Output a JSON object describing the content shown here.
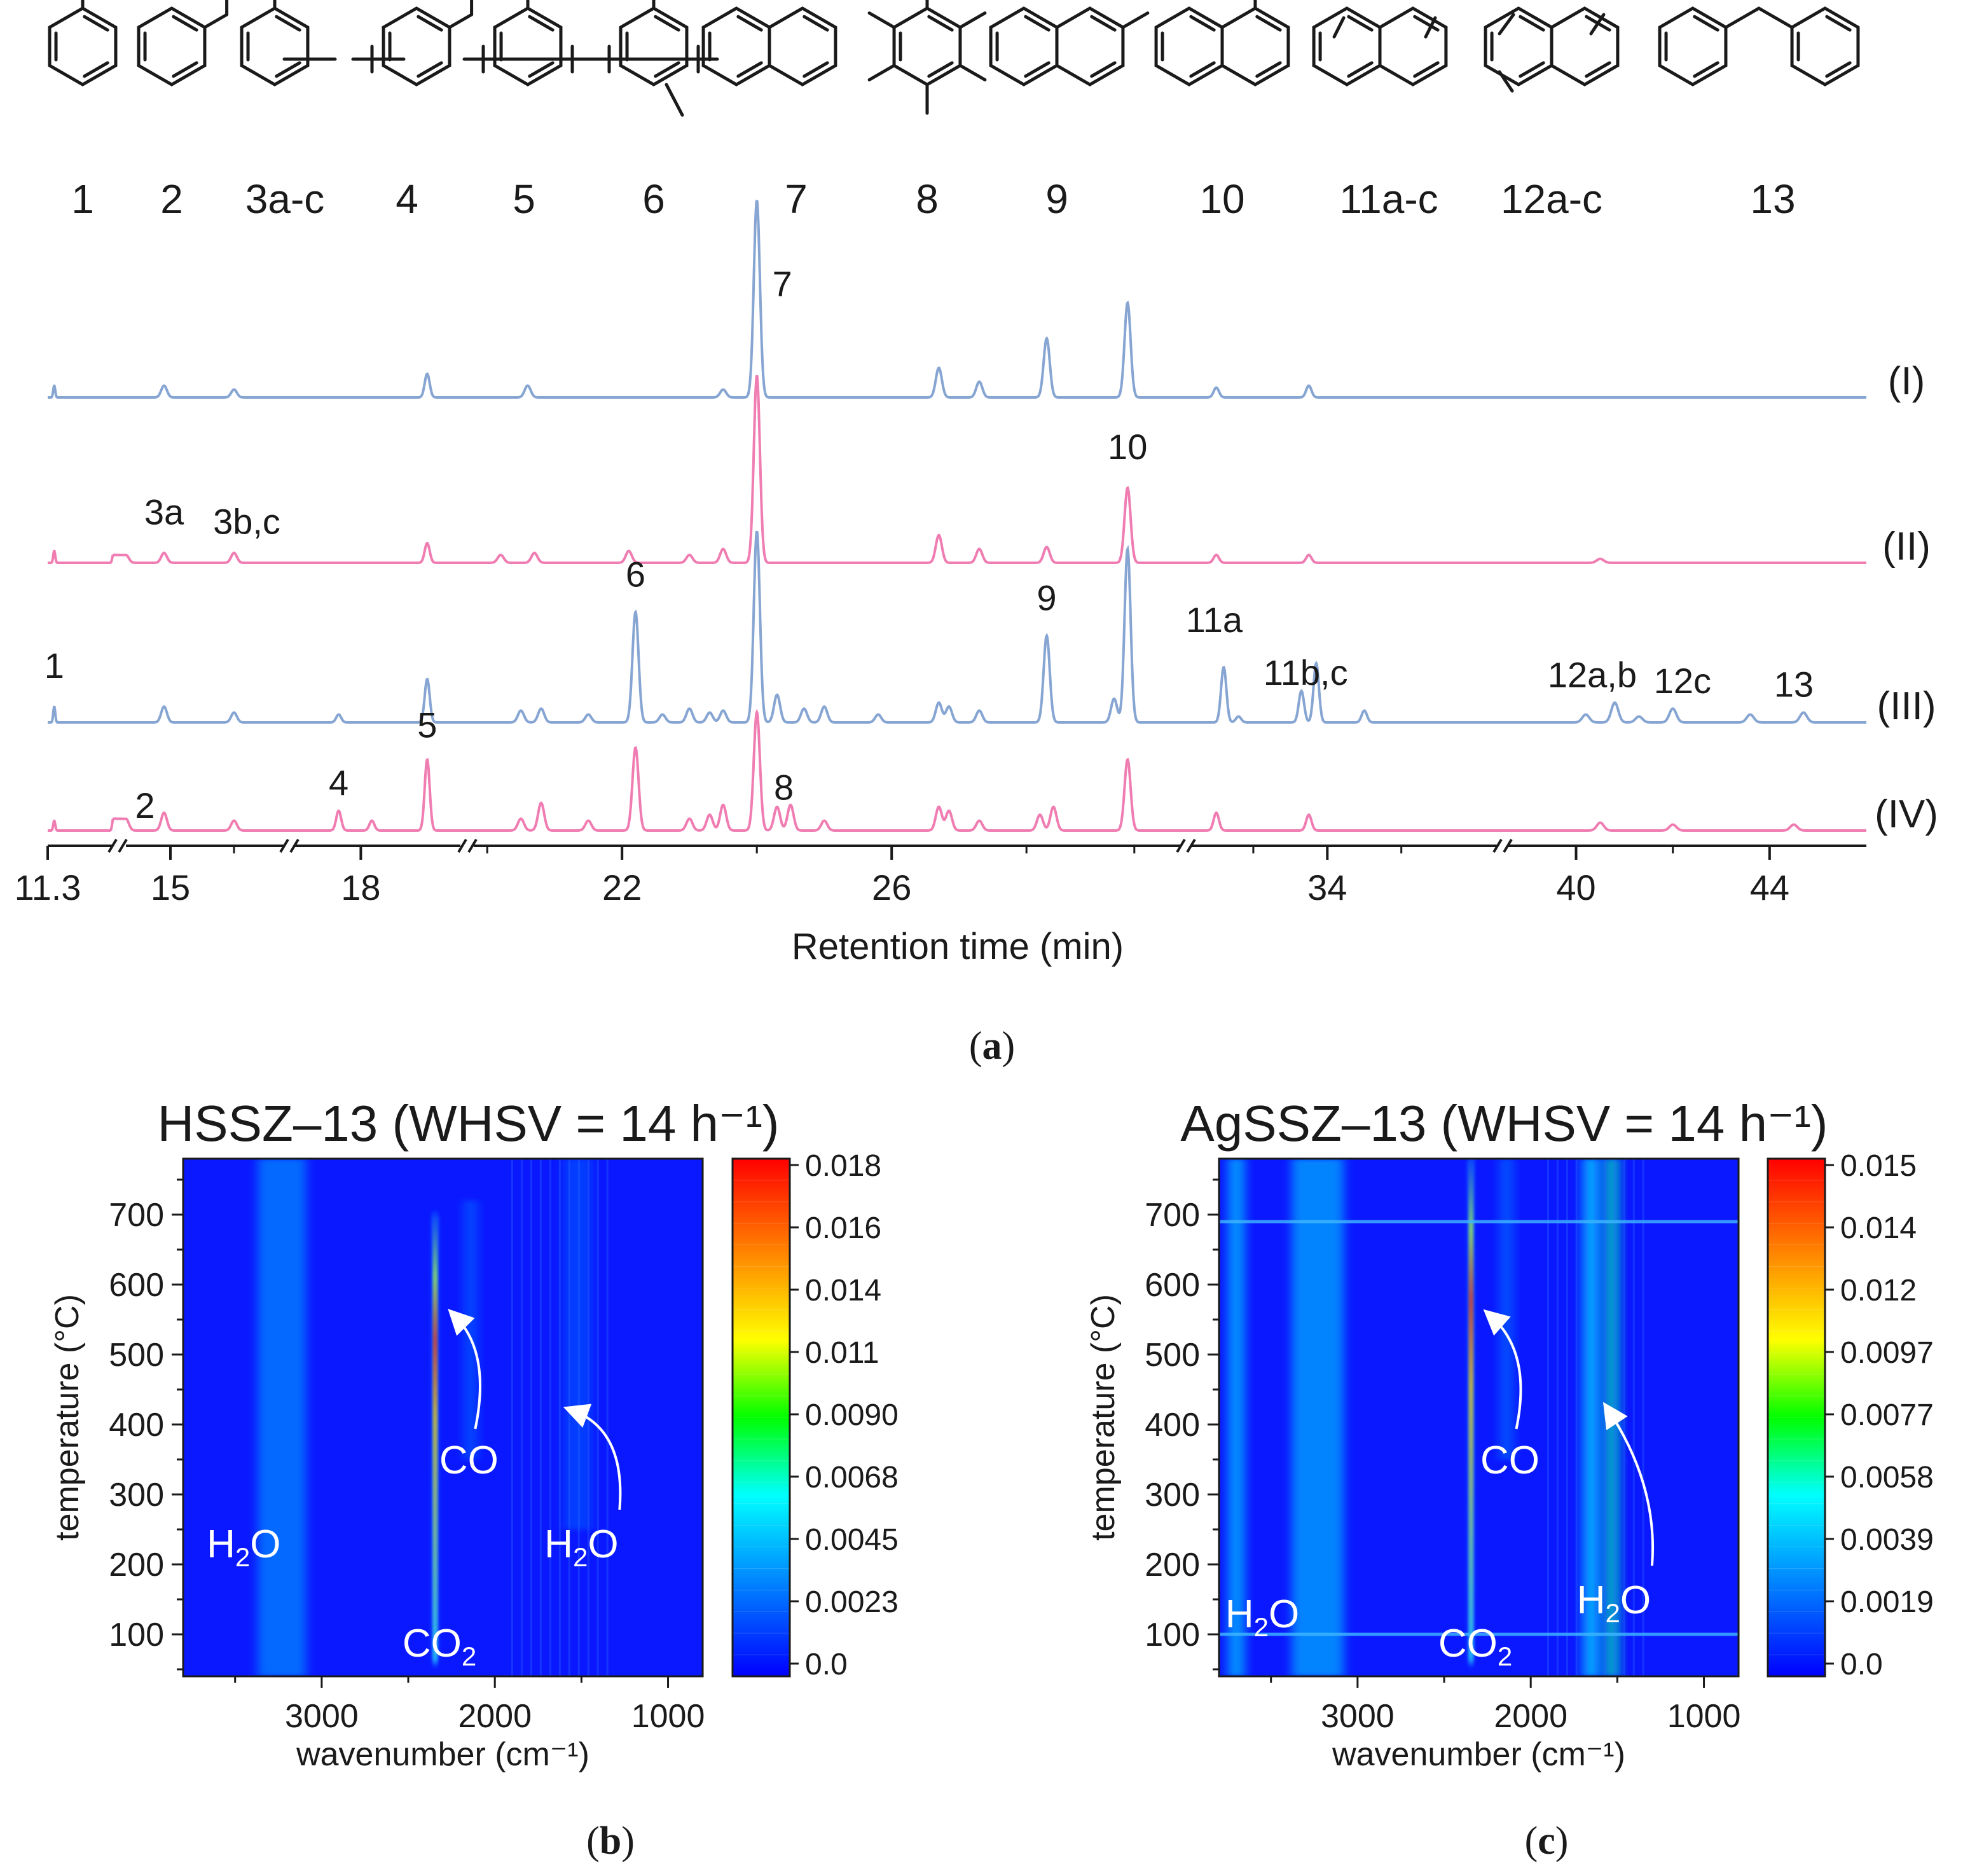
{
  "panel_labels": {
    "a": "a",
    "b": "b",
    "c": "c"
  },
  "structures": {
    "labels": [
      "1",
      "2",
      "3a-c",
      "4",
      "5",
      "6",
      "7",
      "8",
      "9",
      "10",
      "11a-c",
      "12a-c",
      "13"
    ],
    "names": [
      "toluene",
      "ethylbenzene",
      "xylenes",
      "ethyl-methylbenzene",
      "trimethylbenzene",
      "tetramethylbenzene",
      "naphthalene",
      "hexamethylbenzene",
      "2-methylnaphthalene",
      "1-methylnaphthalene",
      "dimethylnaphthalenes",
      "trimethylnaphthalenes",
      "diphenylmethane"
    ]
  },
  "chart_data": [
    {
      "panel": "a",
      "type": "line",
      "title": "",
      "xlabel": "Retention time (min)",
      "ylabel": "",
      "x_tick_labels": [
        "11.3",
        "15",
        "18",
        "22",
        "26",
        "34",
        "40",
        "44"
      ],
      "x_ticks_values": [
        11.3,
        15,
        18,
        22,
        26,
        34,
        40,
        44
      ],
      "axis_segments": [
        [
          11.3,
          14.3
        ],
        [
          14.3,
          16.8
        ],
        [
          16.8,
          19.8
        ],
        [
          19.8,
          30.3
        ],
        [
          30.3,
          38.6
        ],
        [
          38.6,
          46.0
        ]
      ],
      "series_colors": {
        "blue": "#86a5d2",
        "pink": "#ef7db2"
      },
      "series": [
        {
          "name": "(I)",
          "color": "blue",
          "peaks": [
            [
              11.6,
              0.06
            ],
            [
              14.9,
              0.06
            ],
            [
              16.0,
              0.04
            ],
            [
              19.2,
              0.12
            ],
            [
              20.6,
              0.06
            ],
            [
              23.5,
              0.04
            ],
            [
              24.0,
              1.0
            ],
            [
              26.7,
              0.15
            ],
            [
              27.3,
              0.08
            ],
            [
              28.3,
              0.3
            ],
            [
              29.5,
              0.48
            ],
            [
              31.0,
              0.05
            ],
            [
              33.5,
              0.06
            ]
          ]
        },
        {
          "name": "(II)",
          "color": "pink",
          "peaks": [
            [
              11.6,
              0.06
            ],
            [
              14.3,
              0.04
            ],
            [
              14.9,
              0.05
            ],
            [
              16.0,
              0.05
            ],
            [
              19.2,
              0.1
            ],
            [
              20.2,
              0.04
            ],
            [
              20.7,
              0.05
            ],
            [
              22.1,
              0.06
            ],
            [
              23.0,
              0.04
            ],
            [
              23.5,
              0.07
            ],
            [
              24.0,
              0.95
            ],
            [
              26.7,
              0.14
            ],
            [
              27.3,
              0.07
            ],
            [
              28.3,
              0.08
            ],
            [
              29.5,
              0.38
            ],
            [
              31.0,
              0.04
            ],
            [
              33.5,
              0.04
            ],
            [
              40.5,
              0.02
            ]
          ]
        },
        {
          "name": "(III)",
          "color": "blue",
          "peaks": [
            [
              11.6,
              0.08
            ],
            [
              14.9,
              0.08
            ],
            [
              16.0,
              0.05
            ],
            [
              17.6,
              0.04
            ],
            [
              19.2,
              0.22
            ],
            [
              20.5,
              0.06
            ],
            [
              20.8,
              0.07
            ],
            [
              21.5,
              0.04
            ],
            [
              22.2,
              0.56
            ],
            [
              22.6,
              0.04
            ],
            [
              23.0,
              0.07
            ],
            [
              23.3,
              0.05
            ],
            [
              23.5,
              0.06
            ],
            [
              24.0,
              0.97
            ],
            [
              24.3,
              0.14
            ],
            [
              24.7,
              0.07
            ],
            [
              25.0,
              0.08
            ],
            [
              25.8,
              0.04
            ],
            [
              26.7,
              0.1
            ],
            [
              26.85,
              0.08
            ],
            [
              27.3,
              0.06
            ],
            [
              28.3,
              0.44
            ],
            [
              29.3,
              0.12
            ],
            [
              29.5,
              0.88
            ],
            [
              31.2,
              0.28
            ],
            [
              31.6,
              0.03
            ],
            [
              33.3,
              0.16
            ],
            [
              33.7,
              0.3
            ],
            [
              35.0,
              0.06
            ],
            [
              40.2,
              0.04
            ],
            [
              40.8,
              0.1
            ],
            [
              41.3,
              0.03
            ],
            [
              42.0,
              0.07
            ],
            [
              43.6,
              0.04
            ],
            [
              44.7,
              0.05
            ]
          ]
        },
        {
          "name": "(IV)",
          "color": "pink",
          "peaks": [
            [
              11.6,
              0.05
            ],
            [
              14.3,
              0.06
            ],
            [
              14.9,
              0.09
            ],
            [
              16.0,
              0.05
            ],
            [
              17.6,
              0.1
            ],
            [
              18.2,
              0.05
            ],
            [
              19.2,
              0.36
            ],
            [
              20.5,
              0.06
            ],
            [
              20.8,
              0.14
            ],
            [
              21.5,
              0.05
            ],
            [
              22.2,
              0.42
            ],
            [
              23.0,
              0.06
            ],
            [
              23.3,
              0.08
            ],
            [
              23.5,
              0.13
            ],
            [
              24.0,
              0.6
            ],
            [
              24.3,
              0.12
            ],
            [
              24.5,
              0.13
            ],
            [
              25.0,
              0.05
            ],
            [
              26.7,
              0.12
            ],
            [
              26.85,
              0.1
            ],
            [
              27.3,
              0.05
            ],
            [
              28.2,
              0.08
            ],
            [
              28.4,
              0.12
            ],
            [
              29.5,
              0.36
            ],
            [
              31.0,
              0.09
            ],
            [
              33.5,
              0.08
            ],
            [
              40.5,
              0.04
            ],
            [
              42.0,
              0.03
            ],
            [
              44.5,
              0.03
            ]
          ]
        }
      ],
      "annotations": [
        {
          "text": "7",
          "series": "(II)",
          "x": 24.0
        },
        {
          "text": "10",
          "series": "(II)",
          "x": 29.5
        },
        {
          "text": "3a",
          "series": "(II)",
          "x": 14.9
        },
        {
          "text": "3b,c",
          "series": "(II)",
          "x": 16.2
        },
        {
          "text": "1",
          "series": "(III)",
          "x": 11.6
        },
        {
          "text": "6",
          "series": "(III)",
          "x": 22.2
        },
        {
          "text": "9",
          "series": "(III)",
          "x": 28.3
        },
        {
          "text": "11a",
          "series": "(III)",
          "x": 31.2
        },
        {
          "text": "11b,c",
          "series": "(III)",
          "x": 33.5
        },
        {
          "text": "12a,b",
          "series": "(III)",
          "x": 40.4
        },
        {
          "text": "12c",
          "series": "(III)",
          "x": 42.2
        },
        {
          "text": "13",
          "series": "(III)",
          "x": 44.5
        },
        {
          "text": "2",
          "series": "(IV)",
          "x": 14.6
        },
        {
          "text": "4",
          "series": "(IV)",
          "x": 17.6
        },
        {
          "text": "5",
          "series": "(IV)",
          "x": 19.2
        },
        {
          "text": "8",
          "series": "(IV)",
          "x": 24.4
        }
      ]
    },
    {
      "panel": "b",
      "type": "heatmap",
      "title": "HSSZ–13 (WHSV = 14 h⁻¹)",
      "xlabel": "wavenumber (cm⁻¹)",
      "ylabel": "temperature (°C)",
      "xlim": [
        3800,
        800
      ],
      "ylim": [
        40,
        780
      ],
      "x_ticks": [
        3000,
        2000,
        1000
      ],
      "y_ticks": [
        100,
        200,
        300,
        400,
        500,
        600,
        700
      ],
      "colorbar_ticks": [
        "0.0",
        "0.0023",
        "0.0045",
        "0.0068",
        "0.0090",
        "0.011",
        "0.014",
        "0.016",
        "0.018"
      ],
      "colorbar_range": [
        0.0,
        0.0185
      ],
      "bands": [
        {
          "center": 2345,
          "width": 22,
          "tmin": 60,
          "tmax": 700,
          "peak_t": 560,
          "peak": 0.95,
          "sharp": true
        },
        {
          "center": 3230,
          "width": 140,
          "tmin": 40,
          "tmax": 780,
          "peak_t": 780,
          "peak": 0.22
        },
        {
          "center": 2140,
          "width": 40,
          "tmin": 350,
          "tmax": 720,
          "peak_t": 560,
          "peak": 0.14
        },
        {
          "center": 1520,
          "width": 80,
          "tmin": 250,
          "tmax": 780,
          "peak_t": 600,
          "peak": 0.12
        }
      ],
      "annotations": [
        {
          "text": "H",
          "sub": "2",
          "after": "O",
          "x": 3450,
          "y": 210
        },
        {
          "text": "CO",
          "sub": "",
          "after": "",
          "x": 2150,
          "y": 330
        },
        {
          "text": "H",
          "sub": "2",
          "after": "O",
          "x": 1500,
          "y": 210
        },
        {
          "text": "CO",
          "sub": "2",
          "after": "",
          "x": 2320,
          "y": 68
        }
      ]
    },
    {
      "panel": "c",
      "type": "heatmap",
      "title": "AgSSZ–13 (WHSV = 14 h⁻¹)",
      "xlabel": "wavenumber (cm⁻¹)",
      "ylabel": "temperature (°C)",
      "xlim": [
        3800,
        800
      ],
      "ylim": [
        40,
        780
      ],
      "x_ticks": [
        3000,
        2000,
        1000
      ],
      "y_ticks": [
        100,
        200,
        300,
        400,
        500,
        600,
        700
      ],
      "colorbar_ticks": [
        "0.0",
        "0.0019",
        "0.0039",
        "0.0058",
        "0.0077",
        "0.0097",
        "0.012",
        "0.014",
        "0.015"
      ],
      "colorbar_range": [
        0.0,
        0.0155
      ],
      "bands": [
        {
          "center": 2345,
          "width": 22,
          "tmin": 60,
          "tmax": 780,
          "peak_t": 560,
          "peak": 0.95,
          "sharp": true
        },
        {
          "center": 3230,
          "width": 150,
          "tmin": 40,
          "tmax": 780,
          "peak_t": 780,
          "peak": 0.28
        },
        {
          "center": 3700,
          "width": 50,
          "tmin": 40,
          "tmax": 780,
          "peak_t": 780,
          "peak": 0.3
        },
        {
          "center": 2140,
          "width": 40,
          "tmin": 350,
          "tmax": 780,
          "peak_t": 560,
          "peak": 0.16
        },
        {
          "center": 1650,
          "width": 50,
          "tmin": 40,
          "tmax": 780,
          "peak_t": 700,
          "peak": 0.35
        },
        {
          "center": 1530,
          "width": 45,
          "tmin": 40,
          "tmax": 780,
          "peak_t": 700,
          "peak": 0.4
        }
      ],
      "horizontal_lines": [
        100,
        690
      ],
      "annotations": [
        {
          "text": "H",
          "sub": "2",
          "after": "O",
          "x": 3550,
          "y": 110
        },
        {
          "text": "CO",
          "sub": "",
          "after": "",
          "x": 2120,
          "y": 330
        },
        {
          "text": "H",
          "sub": "2",
          "after": "O",
          "x": 1520,
          "y": 130
        },
        {
          "text": "CO",
          "sub": "2",
          "after": "",
          "x": 2320,
          "y": 68
        }
      ]
    }
  ]
}
